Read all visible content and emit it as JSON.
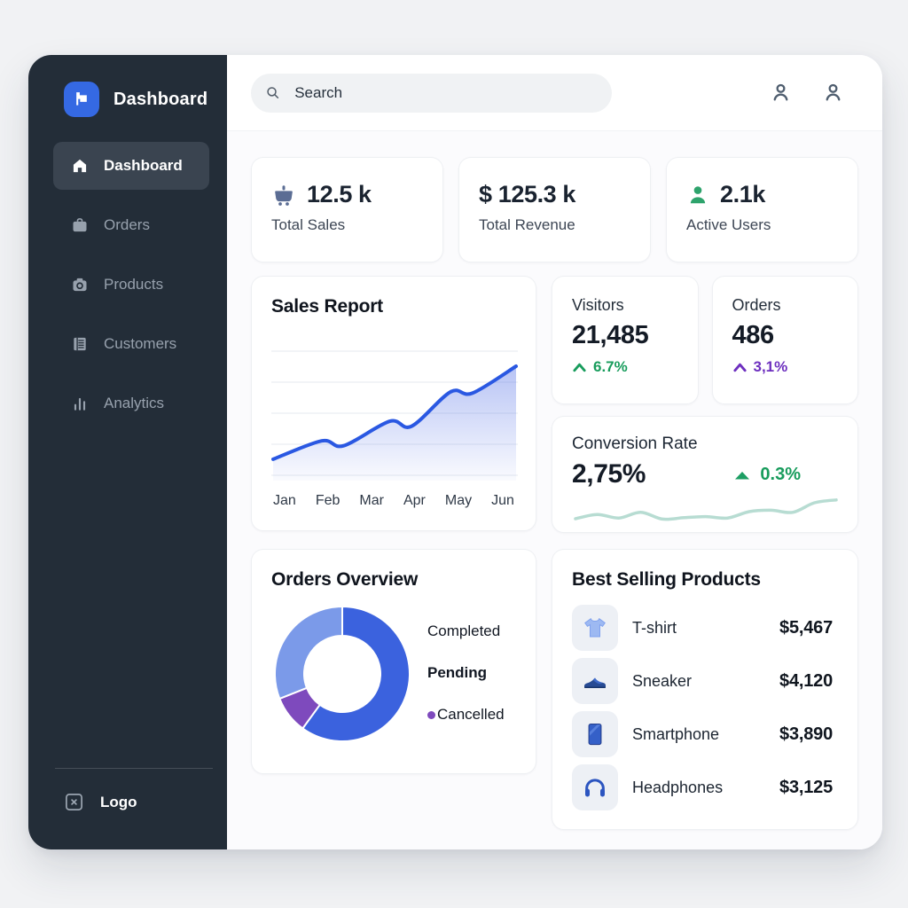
{
  "colors": {
    "accent_blue": "#3569e3",
    "sidebar_bg": "#232d38",
    "positive_green": "#189c5c",
    "icon_green": "#2ea36c",
    "purple": "#6d2fbf",
    "sales_line_blue": "#2a58e2",
    "sparkline_mint": "#b7dcd2",
    "donut_completed": "#3b62de",
    "donut_pending": "#7b9ae9",
    "donut_cancelled": "#7e4abd",
    "cart_icon_slate": "#5b6d94"
  },
  "sidebar": {
    "brand": "Dashboard",
    "items": [
      {
        "label": "Dashboard",
        "icon": "home-icon",
        "active": true
      },
      {
        "label": "Orders",
        "icon": "briefcase-icon",
        "active": false
      },
      {
        "label": "Products",
        "icon": "camera-icon",
        "active": false
      },
      {
        "label": "Customers",
        "icon": "ledger-icon",
        "active": false
      },
      {
        "label": "Analytics",
        "icon": "bar-chart-icon",
        "active": false
      }
    ],
    "footer_label": "Logo"
  },
  "topbar": {
    "search_placeholder": "Search"
  },
  "stats": [
    {
      "icon": "cart-icon",
      "value": "12.5 k",
      "label": "Total Sales"
    },
    {
      "icon": null,
      "value": "$ 125.3 k",
      "label": "Total Revenue"
    },
    {
      "icon": "user-icon",
      "value": "2.1k",
      "label": "Active Users"
    }
  ],
  "kpis": {
    "visitors": {
      "label": "Visitors",
      "value": "21,485",
      "change": "6.7%",
      "direction": "up"
    },
    "orders": {
      "label": "Orders",
      "value": "486",
      "change": "3,1%",
      "direction": "up"
    },
    "conversion": {
      "label": "Conversion Rate",
      "value": "2,75%",
      "change": "0.3%",
      "direction": "up"
    }
  },
  "best_selling": {
    "title": "Best Selling Products",
    "items": [
      {
        "icon": "tshirt-icon",
        "name": "T-shirt",
        "price": "$5,467"
      },
      {
        "icon": "sneaker-icon",
        "name": "Sneaker",
        "price": "$4,120"
      },
      {
        "icon": "smartphone-icon",
        "name": "Smartphone",
        "price": "$3,890"
      },
      {
        "icon": "headphones-icon",
        "name": "Headphones",
        "price": "$3,125"
      }
    ]
  },
  "chart_data": [
    {
      "id": "sales_report",
      "type": "area",
      "title": "Sales Report",
      "categories": [
        "Jan",
        "Feb",
        "Mar",
        "Apr",
        "May",
        "Jun"
      ],
      "values": [
        20,
        30,
        40,
        45,
        70,
        90
      ],
      "curve_samples": [
        [
          0,
          16
        ],
        [
          0.2,
          31
        ],
        [
          0.29,
          27
        ],
        [
          0.48,
          47
        ],
        [
          0.57,
          43
        ],
        [
          0.73,
          71
        ],
        [
          0.82,
          70
        ],
        [
          1,
          92
        ]
      ],
      "ylim": [
        0,
        100
      ],
      "grid": true,
      "gridlines": 5,
      "line_color": "#2a58e2",
      "fill_color": "#4c6ae5",
      "legend_position": "none"
    },
    {
      "id": "orders_overview",
      "type": "donut",
      "title": "Orders Overview",
      "slices": [
        {
          "label": "Completed",
          "value": 60,
          "color": "#3b62de"
        },
        {
          "label": "Cancelled",
          "value": 9,
          "color": "#7e4abd"
        },
        {
          "label": "Pending",
          "value": 31,
          "color": "#7b9ae9"
        }
      ],
      "legend_order": [
        "Completed",
        "Pending",
        "Cancelled"
      ],
      "legend_position": "right"
    },
    {
      "id": "conversion_trend",
      "type": "line",
      "title": "Conversion Rate",
      "values": [
        2.0,
        3.2,
        2.2,
        3.8,
        1.9,
        2.3,
        2.6,
        2.2,
        4.0,
        4.4,
        3.8,
        6.5,
        7.3
      ],
      "ylim": [
        0,
        10
      ],
      "grid": false,
      "line_color": "#b7dcd2"
    }
  ]
}
